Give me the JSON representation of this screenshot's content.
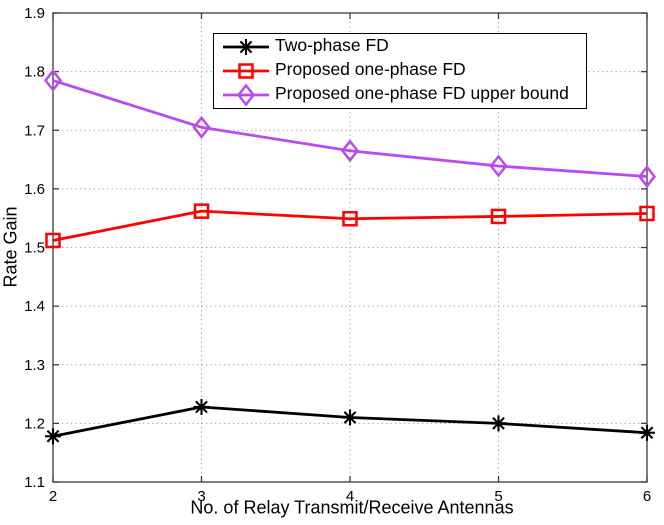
{
  "chart_data": {
    "type": "line",
    "title": "",
    "xlabel": "No. of Relay Transmit/Receive Antennas",
    "ylabel": "Rate Gain",
    "x": [
      2,
      3,
      4,
      5,
      6
    ],
    "series": [
      {
        "name": "Two-phase FD",
        "color": "#000000",
        "marker": "asterisk",
        "values": [
          1.178,
          1.228,
          1.21,
          1.2,
          1.184
        ]
      },
      {
        "name": "Proposed one-phase FD",
        "color": "#ff0000",
        "marker": "square",
        "values": [
          1.512,
          1.562,
          1.549,
          1.553,
          1.558
        ]
      },
      {
        "name": "Proposed one-phase FD upper bound",
        "color": "#b94af2",
        "marker": "diamond",
        "values": [
          1.785,
          1.705,
          1.665,
          1.639,
          1.621
        ]
      }
    ],
    "xlim": [
      2,
      6
    ],
    "ylim": [
      1.1,
      1.9
    ],
    "xticks": [
      2,
      3,
      4,
      5,
      6
    ],
    "xticklabels": [
      "2",
      "3",
      "4",
      "5",
      "6"
    ],
    "yticks": [
      1.1,
      1.2,
      1.3,
      1.4,
      1.5,
      1.6,
      1.7,
      1.8,
      1.9
    ],
    "yticklabels": [
      "1.1",
      "1.2",
      "1.3",
      "1.4",
      "1.5",
      "1.6",
      "1.7",
      "1.8",
      "1.9"
    ],
    "grid": true,
    "grid_style": "dotted",
    "legend_position": "top-center"
  },
  "colors": {
    "axis": "#3a3a3a",
    "grid": "#a0a0a0",
    "tick_text": "#000000",
    "background": "#ffffff"
  }
}
